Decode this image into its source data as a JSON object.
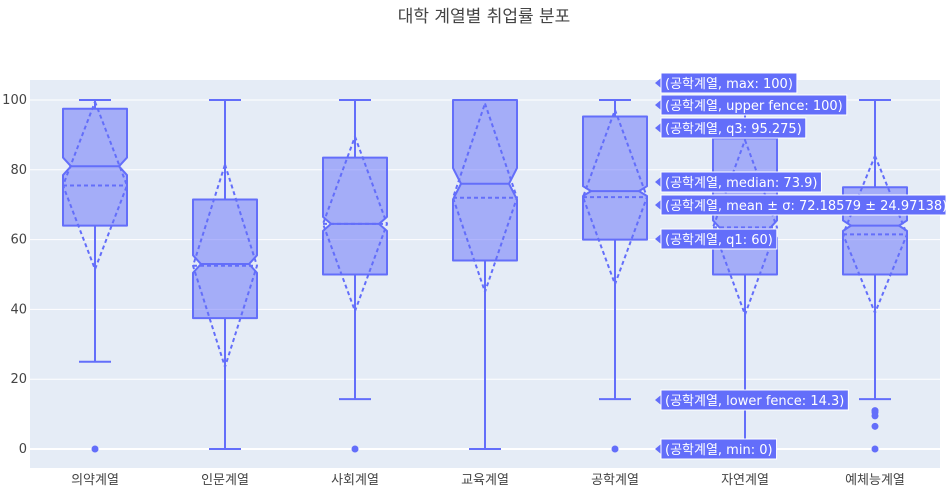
{
  "chart_data": {
    "type": "box",
    "title": "대학 계열별 취업률 분포",
    "xlabel": "",
    "ylabel": "",
    "ylim": [
      -6,
      106
    ],
    "yticks": [
      0,
      20,
      40,
      60,
      80,
      100
    ],
    "grid": true,
    "box_color": "#636efa",
    "plot_bg": "#e5ecf6",
    "categories": [
      "의약계열",
      "인문계열",
      "사회계열",
      "교육계열",
      "공학계열",
      "자연계열",
      "예체능계열"
    ],
    "boxes": [
      {
        "category": "의약계열",
        "min": 0,
        "lower_fence": 25,
        "q1": 64,
        "median": 81,
        "q3": 97.5,
        "upper_fence": 100,
        "max": 100,
        "mean": 75.5,
        "sd": 24,
        "notch": [
          78.5,
          83.5
        ],
        "outliers": [
          0
        ]
      },
      {
        "category": "인문계열",
        "min": 0,
        "lower_fence": 0,
        "q1": 37.5,
        "median": 53,
        "q3": 71.5,
        "upper_fence": 100,
        "max": 100,
        "mean": 52.5,
        "sd": 29,
        "notch": [
          50.5,
          55.5
        ],
        "outliers": []
      },
      {
        "category": "사회계열",
        "min": 0,
        "lower_fence": 14.3,
        "q1": 50,
        "median": 64.5,
        "q3": 83.5,
        "upper_fence": 100,
        "max": 100,
        "mean": 64.5,
        "sd": 25,
        "notch": [
          62.5,
          66.5
        ],
        "outliers": [
          0
        ]
      },
      {
        "category": "교육계열",
        "min": 0,
        "lower_fence": 0,
        "q1": 54,
        "median": 76,
        "q3": 100,
        "upper_fence": 100,
        "max": 100,
        "mean": 72,
        "sd": 27,
        "notch": [
          71.5,
          80.5
        ],
        "outliers": []
      },
      {
        "category": "공학계열",
        "min": 0,
        "lower_fence": 14.3,
        "q1": 60,
        "median": 73.9,
        "q3": 95.275,
        "upper_fence": 100,
        "max": 100,
        "mean": 72.18579,
        "sd": 24.97138,
        "notch": [
          72.5,
          75.3
        ],
        "outliers": [
          0
        ]
      },
      {
        "category": "자연계열",
        "min": 0,
        "lower_fence": 0,
        "q1": 50,
        "median": 63,
        "q3": 89,
        "upper_fence": 100,
        "max": 100,
        "mean": 63.5,
        "sd": 25,
        "notch": [
          60.5,
          65.5
        ],
        "outliers": []
      },
      {
        "category": "예체능계열",
        "min": 0,
        "lower_fence": 14.3,
        "q1": 50,
        "median": 64,
        "q3": 75,
        "upper_fence": 100,
        "max": 100,
        "mean": 61.5,
        "sd": 22.5,
        "notch": [
          62.5,
          65.5
        ],
        "outliers": [
          0,
          6.5,
          9.5,
          10.5,
          11
        ]
      }
    ],
    "hover": {
      "category": "공학계열",
      "color": "#636efa",
      "labels": [
        {
          "value": 100,
          "text": "(공학계열, max: 100)"
        },
        {
          "value": 100,
          "text": "(공학계열, upper fence: 100)"
        },
        {
          "value": 95.275,
          "text": "(공학계열, q3: 95.275)"
        },
        {
          "value": 73.9,
          "text": "(공학계열, median: 73.9)"
        },
        {
          "value": 72.18579,
          "text": "(공학계열, mean ± σ: 72.18579 ± 24.97138)"
        },
        {
          "value": 60,
          "text": "(공학계열, q1: 60)"
        },
        {
          "value": 14.3,
          "text": "(공학계열, lower fence: 14.3)"
        },
        {
          "value": 0,
          "text": "(공학계열, min: 0)"
        }
      ]
    }
  }
}
